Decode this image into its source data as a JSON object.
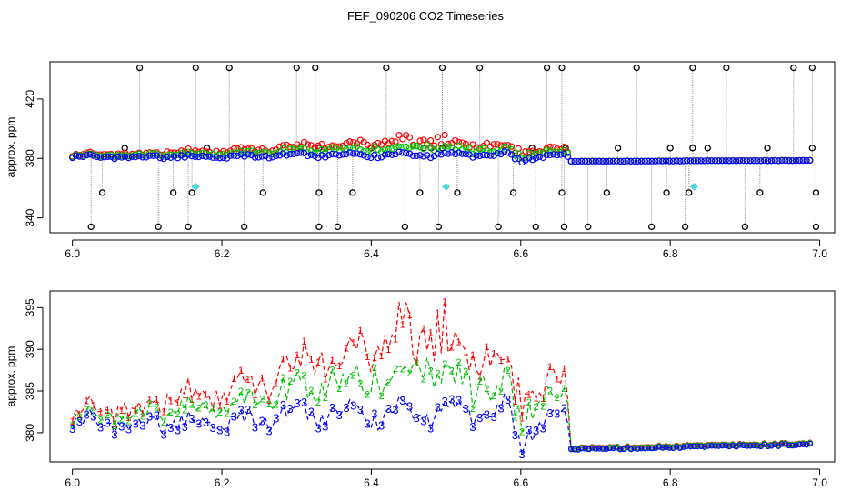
{
  "chart_data": [
    {
      "type": "scatter",
      "title": "FEF_090206  CO2 Timeseries",
      "ylabel": "approx. ppm",
      "xlabel": "",
      "xlim": [
        5.97,
        7.02
      ],
      "ylim": [
        330,
        445
      ],
      "xticks": [
        "6.0",
        "6.2",
        "6.4",
        "6.6",
        "6.8",
        "7.0"
      ],
      "yticks": [
        "340",
        "380",
        "420"
      ],
      "series": [
        {
          "name": "spikes",
          "color": "#000000",
          "marker": "open-circle"
        },
        {
          "name": "1",
          "color": "#ff0000",
          "marker": "open-circle"
        },
        {
          "name": "2",
          "color": "#00c000",
          "marker": "open-circle"
        },
        {
          "name": "3",
          "color": "#0000ff",
          "marker": "open-circle"
        },
        {
          "name": "flag",
          "color": "#40e0e0",
          "marker": "filled-diamond"
        }
      ],
      "spikes_high": [
        6.09,
        6.165,
        6.21,
        6.3,
        6.325,
        6.42,
        6.495,
        6.545,
        6.635,
        6.655,
        6.755,
        6.83,
        6.875,
        6.965,
        6.99
      ],
      "spikes_mid_high": [
        6.07,
        6.18,
        6.33,
        6.4,
        6.47,
        6.48,
        6.495,
        6.615,
        6.66,
        6.73,
        6.8,
        6.83,
        6.85,
        6.93,
        6.99
      ],
      "spikes_mid_low": [
        6.04,
        6.135,
        6.16,
        6.255,
        6.33,
        6.375,
        6.465,
        6.515,
        6.59,
        6.655,
        6.715,
        6.795,
        6.825,
        6.92,
        6.995
      ],
      "spikes_low": [
        6.025,
        6.115,
        6.155,
        6.23,
        6.33,
        6.355,
        6.445,
        6.49,
        6.57,
        6.62,
        6.658,
        6.69,
        6.775,
        6.82,
        6.9,
        6.995
      ],
      "flag_points": [
        [
          6.165,
          361
        ],
        [
          6.5,
          361
        ],
        [
          6.832,
          361
        ]
      ]
    },
    {
      "type": "line",
      "title": "",
      "ylabel": "approx. ppm",
      "xlabel": "",
      "xlim": [
        5.97,
        7.02
      ],
      "ylim": [
        376.5,
        397
      ],
      "xticks": [
        "6.0",
        "6.2",
        "6.4",
        "6.6",
        "6.8",
        "7.0"
      ],
      "yticks": [
        "380",
        "385",
        "390",
        "395"
      ],
      "series": [
        {
          "name": "1",
          "color": "#ff0000",
          "label": "1"
        },
        {
          "name": "2",
          "color": "#00c000",
          "label": "2"
        },
        {
          "name": "3",
          "color": "#0000ff",
          "label": "3"
        }
      ]
    }
  ]
}
